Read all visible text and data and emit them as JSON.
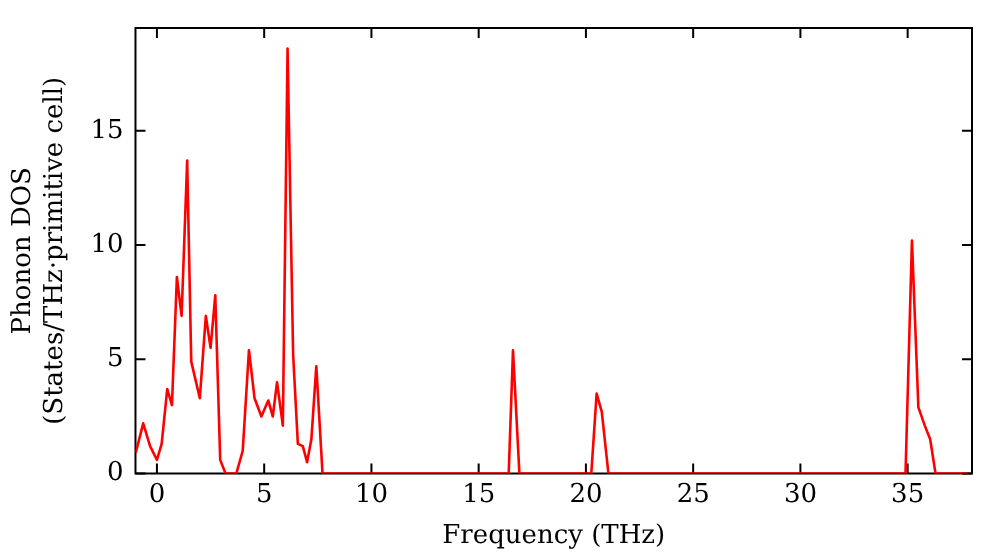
{
  "chart_data": {
    "type": "line",
    "xlabel": "Frequency (THz)",
    "ylabel": "Phonon DOS\n(States/THz·primitive cell)",
    "xlim": [
      -1,
      38
    ],
    "ylim": [
      0,
      19.5
    ],
    "xticks": [
      0,
      5,
      10,
      15,
      20,
      25,
      30,
      35
    ],
    "yticks": [
      0,
      5,
      10,
      15
    ],
    "grid": false,
    "legend": false,
    "marker": "none",
    "line_style": "solid",
    "series": [
      {
        "color": "#ff0000",
        "x": [
          -0.99,
          -0.64,
          -0.32,
          0,
          0.22,
          0.48,
          0.7,
          0.93,
          1.15,
          1.41,
          1.6,
          2.0,
          2.28,
          2.5,
          2.72,
          2.95,
          3.2,
          3.7,
          4.0,
          4.29,
          4.55,
          4.87,
          5.19,
          5.4,
          5.6,
          5.87,
          6.09,
          6.35,
          6.57,
          6.8,
          7.0,
          7.2,
          7.43,
          7.72,
          16.2,
          16.4,
          16.6,
          16.9,
          20.1,
          20.25,
          20.5,
          20.74,
          21.05,
          34.8,
          34.9,
          35.2,
          35.5,
          35.8,
          36.05,
          36.3,
          37.8
        ],
        "values": [
          0.9,
          2.2,
          1.2,
          0.6,
          1.3,
          3.7,
          3.0,
          8.6,
          6.9,
          13.7,
          4.9,
          3.3,
          6.9,
          5.5,
          7.8,
          0.6,
          0,
          0,
          1.0,
          5.4,
          3.3,
          2.5,
          3.2,
          2.5,
          4.0,
          2.1,
          18.6,
          5.2,
          1.3,
          1.2,
          0.5,
          1.5,
          4.7,
          0,
          0,
          0,
          5.4,
          0,
          0,
          0,
          3.5,
          2.7,
          0,
          0,
          0,
          10.2,
          2.9,
          2.1,
          1.5,
          0,
          0
        ]
      }
    ]
  }
}
